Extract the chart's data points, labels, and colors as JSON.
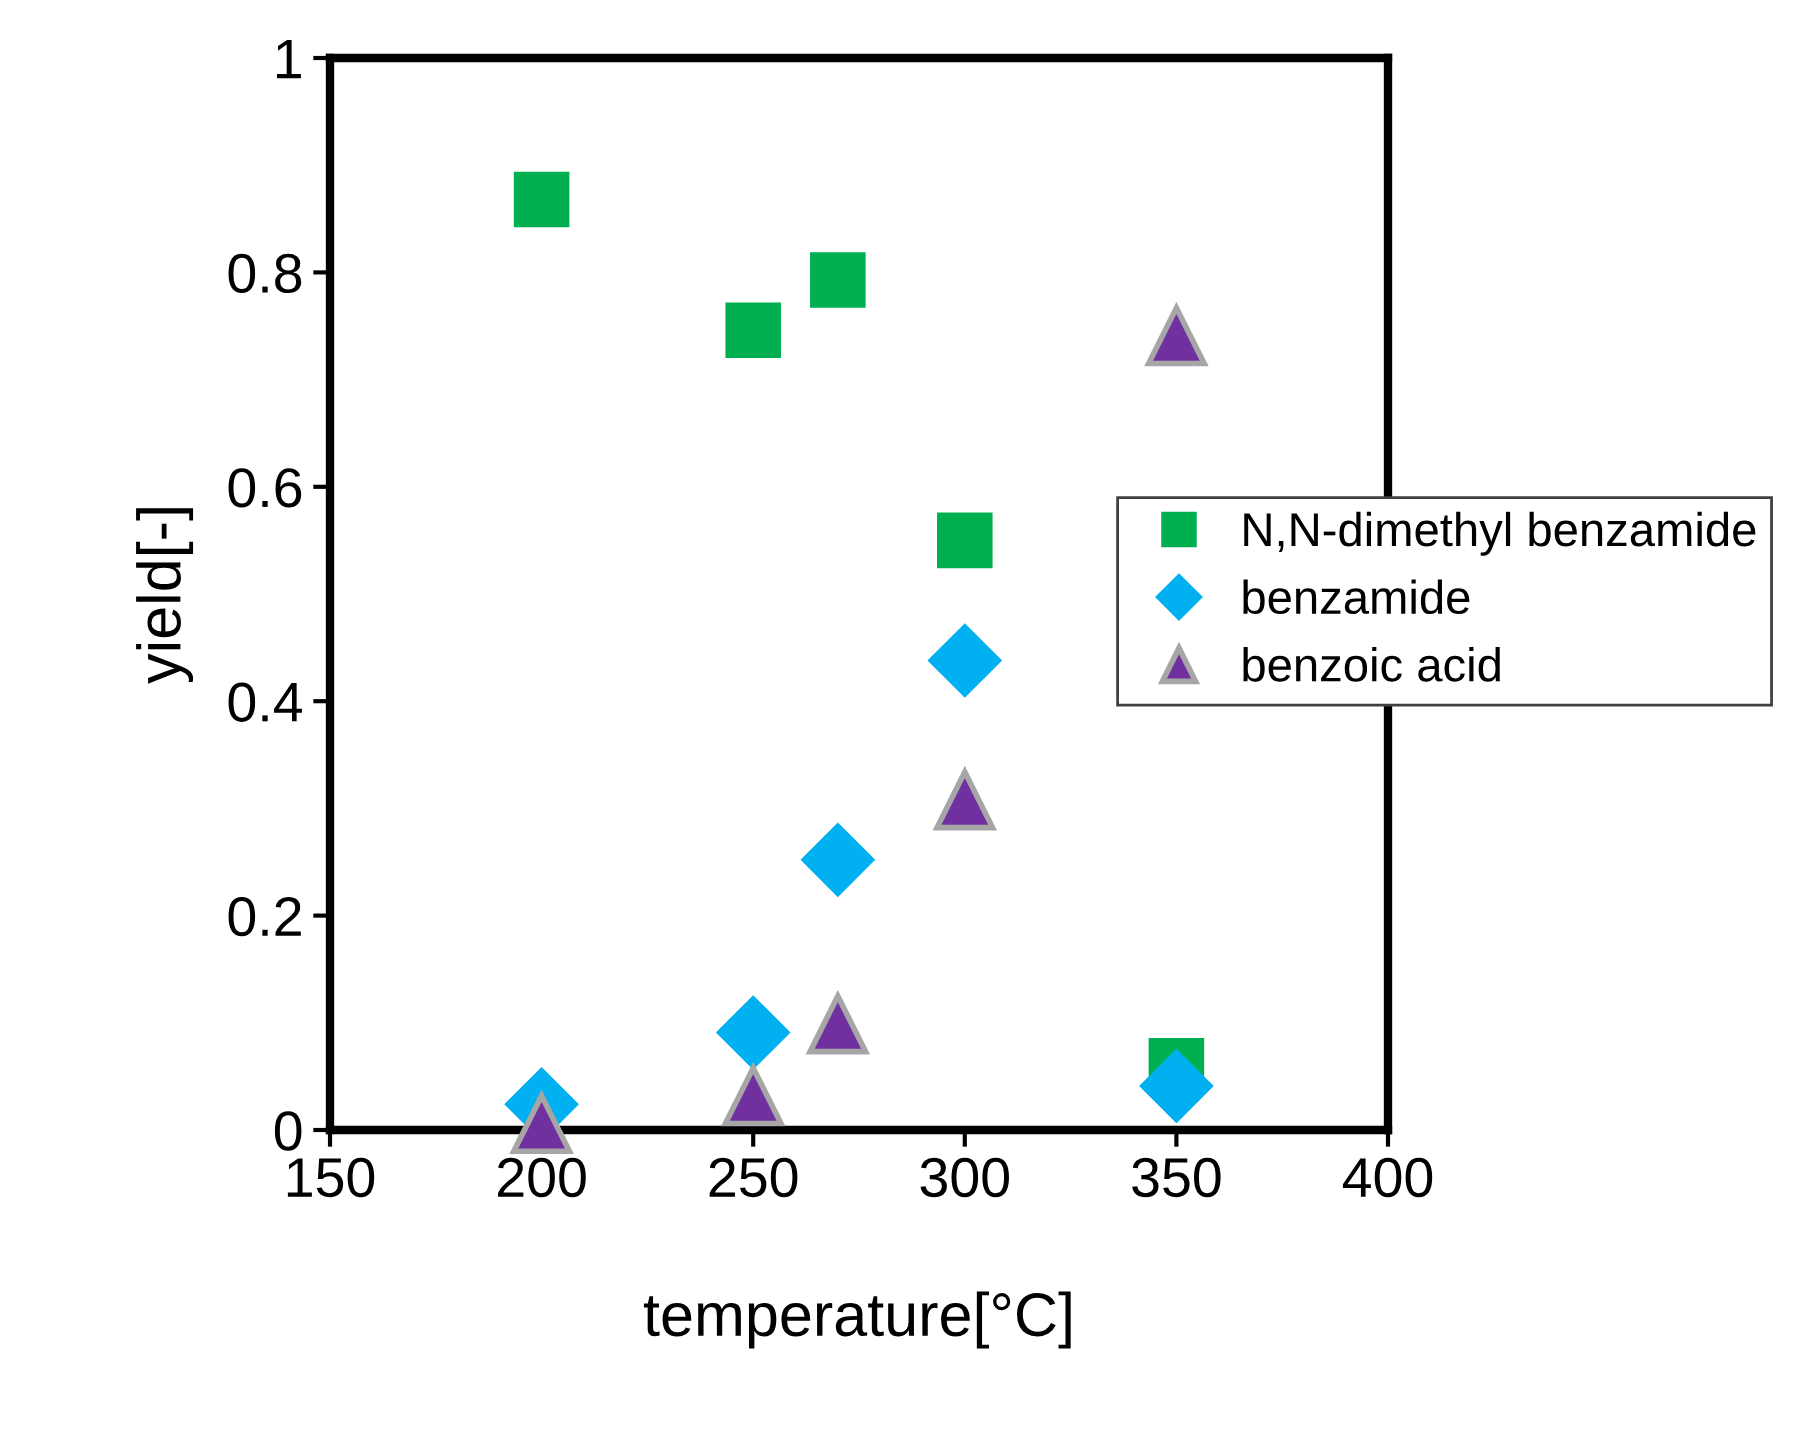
{
  "chart_data": {
    "type": "scatter",
    "xlabel": "temperature[°C]",
    "ylabel": "yield[-]",
    "xlim": [
      150,
      400
    ],
    "xticks": [
      150,
      200,
      250,
      300,
      350,
      400
    ],
    "ylim": [
      0,
      1
    ],
    "yticks": [
      0,
      0.2,
      0.4,
      0.6,
      0.8,
      1
    ],
    "grid": false,
    "legend": "right",
    "series": [
      {
        "name": "N,N-dimethyl benzamide",
        "color": "#00b050",
        "marker": "square",
        "x": [
          200,
          250,
          270,
          300,
          350
        ],
        "values": [
          0.868,
          0.746,
          0.793,
          0.55,
          0.06
        ]
      },
      {
        "name": "benzamide",
        "color": "#00b0f0",
        "marker": "diamond",
        "x": [
          200,
          250,
          270,
          300,
          350
        ],
        "values": [
          0.024,
          0.091,
          0.252,
          0.438,
          0.041
        ]
      },
      {
        "name": "benzoic acid",
        "color": "#7030a0",
        "marker": "triangle",
        "x": [
          200,
          250,
          270,
          300,
          350
        ],
        "values": [
          0.006,
          0.032,
          0.099,
          0.308,
          0.741
        ]
      }
    ]
  }
}
